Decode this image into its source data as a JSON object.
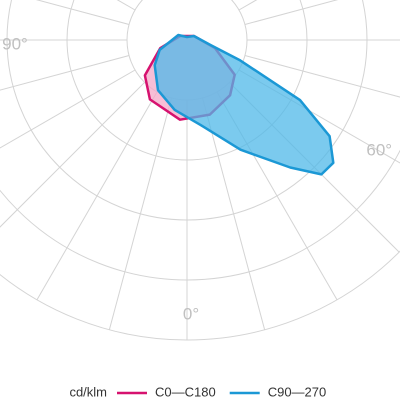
{
  "chart_data": {
    "type": "polar",
    "unit_label": "cd/klm",
    "rlim": [
      0,
      300
    ],
    "rticks": [
      60,
      120,
      180,
      240,
      300
    ],
    "theta_ticks": [
      -180,
      -165,
      -150,
      -135,
      -120,
      -105,
      -90,
      -75,
      -60,
      -45,
      -30,
      -15,
      0,
      15,
      30,
      45,
      60,
      75,
      90,
      105,
      120,
      135,
      150,
      165
    ],
    "angle_labels": [
      {
        "value": 90,
        "label": "90°"
      },
      {
        "value": 60,
        "label": "60°"
      },
      {
        "value": 0,
        "label": "0°"
      }
    ],
    "series": [
      {
        "name": "C0—C180",
        "color": "#d6126f",
        "fill": "#f4a8c8",
        "theta": [
          -73,
          -50,
          -32,
          -5,
          17,
          38,
          54,
          74,
          120,
          180,
          -120
        ],
        "values": [
          28,
          55,
          70,
          80,
          78,
          70,
          59,
          29,
          8,
          4,
          8
        ]
      },
      {
        "name": "C90—270",
        "color": "#1b98d5",
        "fill": "#4fb8e8",
        "theta": [
          -70,
          -52,
          -30,
          -10,
          9,
          26,
          39,
          45,
          50,
          56,
          62,
          69,
          78,
          120,
          180,
          -120
        ],
        "values": [
          29,
          41,
          58,
          71,
          86,
          122,
          164,
          190,
          191,
          172,
          128,
          57,
          24,
          8,
          3,
          10
        ]
      }
    ]
  }
}
